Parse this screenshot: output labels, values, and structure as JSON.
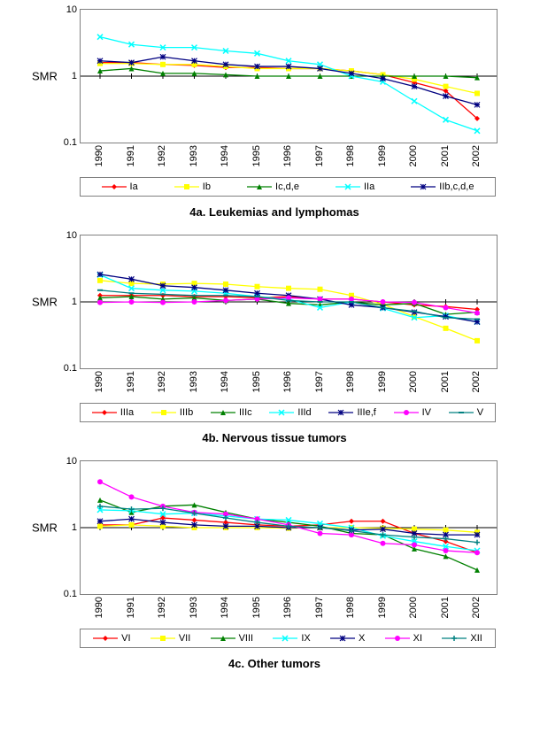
{
  "years": [
    1990,
    1991,
    1992,
    1993,
    1994,
    1995,
    1996,
    1997,
    1998,
    1999,
    2000,
    2001,
    2002
  ],
  "ylabel": "SMR",
  "ylim_log": {
    "min": 0.1,
    "max": 10
  },
  "yticks": [
    0.1,
    1,
    10
  ],
  "background_color": "#ffffff",
  "axis_color": "#000000",
  "grid_color": "#000000",
  "marker_size": 3.0,
  "line_width": 1.3,
  "marker_types": {
    "diamond": "diamond",
    "square": "square",
    "triangle": "triangle",
    "x": "x",
    "star": "star",
    "circle": "circle",
    "plus": "plus",
    "dash": "dash"
  },
  "charts": [
    {
      "id": "chart4a",
      "caption": "4a.  Leukemias and lymphomas",
      "series": [
        {
          "name": "Ia",
          "color": "#ff0000",
          "marker": "diamond",
          "values": [
            1.6,
            1.6,
            1.5,
            1.45,
            1.35,
            1.35,
            1.3,
            1.3,
            1.2,
            1.05,
            0.8,
            0.6,
            0.23
          ]
        },
        {
          "name": "Ib",
          "color": "#ffff00",
          "marker": "square",
          "values": [
            1.55,
            1.55,
            1.5,
            1.5,
            1.4,
            1.3,
            1.3,
            1.3,
            1.2,
            1.05,
            0.9,
            0.7,
            0.55
          ]
        },
        {
          "name": "Ic,d,e",
          "color": "#008000",
          "marker": "triangle",
          "values": [
            1.2,
            1.3,
            1.1,
            1.1,
            1.05,
            1.0,
            1.0,
            1.0,
            1.0,
            1.0,
            1.0,
            1.0,
            0.95
          ]
        },
        {
          "name": "IIa",
          "color": "#00ffff",
          "marker": "x",
          "values": [
            3.9,
            3.0,
            2.7,
            2.7,
            2.4,
            2.2,
            1.7,
            1.5,
            1.0,
            0.82,
            0.42,
            0.22,
            0.15
          ]
        },
        {
          "name": "IIb,c,d,e",
          "color": "#000080",
          "marker": "star",
          "values": [
            1.7,
            1.6,
            1.95,
            1.7,
            1.5,
            1.4,
            1.4,
            1.3,
            1.1,
            0.92,
            0.7,
            0.5,
            0.37
          ]
        }
      ]
    },
    {
      "id": "chart4b",
      "caption": "4b.  Nervous tissue tumors",
      "series": [
        {
          "name": "IIIa",
          "color": "#ff0000",
          "marker": "diamond",
          "values": [
            1.25,
            1.25,
            1.25,
            1.2,
            1.2,
            1.15,
            1.2,
            1.1,
            1.1,
            1.0,
            0.9,
            0.85,
            0.77
          ]
        },
        {
          "name": "IIIb",
          "color": "#ffff00",
          "marker": "square",
          "values": [
            2.1,
            1.9,
            1.85,
            1.9,
            1.85,
            1.7,
            1.6,
            1.55,
            1.25,
            0.92,
            0.6,
            0.4,
            0.26
          ]
        },
        {
          "name": "IIIc",
          "color": "#008000",
          "marker": "triangle",
          "values": [
            1.15,
            1.2,
            1.1,
            1.15,
            1.05,
            1.1,
            0.95,
            0.9,
            1.0,
            0.9,
            0.95,
            0.65,
            0.7
          ]
        },
        {
          "name": "IIId",
          "color": "#00ffff",
          "marker": "x",
          "values": [
            2.55,
            1.6,
            1.5,
            1.45,
            1.35,
            1.2,
            1.1,
            0.82,
            1.0,
            0.8,
            0.58,
            0.62,
            0.5
          ]
        },
        {
          "name": "IIIe,f",
          "color": "#000080",
          "marker": "star",
          "values": [
            2.6,
            2.2,
            1.75,
            1.65,
            1.5,
            1.35,
            1.25,
            1.1,
            0.9,
            0.82,
            0.7,
            0.6,
            0.5
          ]
        },
        {
          "name": "IV",
          "color": "#ff00ff",
          "marker": "circle",
          "values": [
            0.98,
            1.0,
            0.98,
            1.0,
            1.05,
            1.1,
            1.15,
            1.1,
            1.1,
            1.0,
            0.98,
            0.82,
            0.68
          ]
        },
        {
          "name": "V",
          "color": "#008080",
          "marker": "dash",
          "values": [
            1.5,
            1.35,
            1.3,
            1.25,
            1.25,
            1.2,
            1.05,
            1.0,
            1.0,
            0.82,
            0.72,
            0.58,
            0.55
          ]
        }
      ]
    },
    {
      "id": "chart4c",
      "caption": "4c.  Other tumors",
      "series": [
        {
          "name": "VI",
          "color": "#ff0000",
          "marker": "diamond",
          "values": [
            1.1,
            1.1,
            1.4,
            1.3,
            1.2,
            1.1,
            1.05,
            1.1,
            1.25,
            1.25,
            0.82,
            0.62,
            0.42
          ]
        },
        {
          "name": "VII",
          "color": "#ffff00",
          "marker": "square",
          "values": [
            1.05,
            1.1,
            1.05,
            1.0,
            1.0,
            1.0,
            0.98,
            1.0,
            1.0,
            0.98,
            0.95,
            0.92,
            0.85
          ]
        },
        {
          "name": "VIII",
          "color": "#008000",
          "marker": "triangle",
          "values": [
            2.6,
            1.7,
            2.1,
            2.2,
            1.7,
            1.35,
            1.2,
            1.05,
            0.82,
            0.78,
            0.48,
            0.37,
            0.23
          ]
        },
        {
          "name": "IX",
          "color": "#00ffff",
          "marker": "x",
          "values": [
            1.85,
            1.8,
            1.6,
            1.65,
            1.5,
            1.35,
            1.3,
            1.15,
            1.0,
            0.75,
            0.62,
            0.52,
            0.45
          ]
        },
        {
          "name": "X",
          "color": "#000080",
          "marker": "star",
          "values": [
            1.25,
            1.35,
            1.2,
            1.1,
            1.05,
            1.05,
            1.0,
            1.0,
            0.92,
            0.95,
            0.82,
            0.78,
            0.78
          ]
        },
        {
          "name": "XI",
          "color": "#ff00ff",
          "marker": "circle",
          "values": [
            4.9,
            2.9,
            2.1,
            1.7,
            1.6,
            1.35,
            1.1,
            0.82,
            0.78,
            0.58,
            0.55,
            0.45,
            0.42
          ]
        },
        {
          "name": "XII",
          "color": "#008080",
          "marker": "plus",
          "values": [
            2.1,
            1.9,
            1.95,
            1.65,
            1.4,
            1.2,
            1.05,
            1.0,
            0.9,
            0.78,
            0.72,
            0.68,
            0.6
          ]
        }
      ]
    }
  ]
}
